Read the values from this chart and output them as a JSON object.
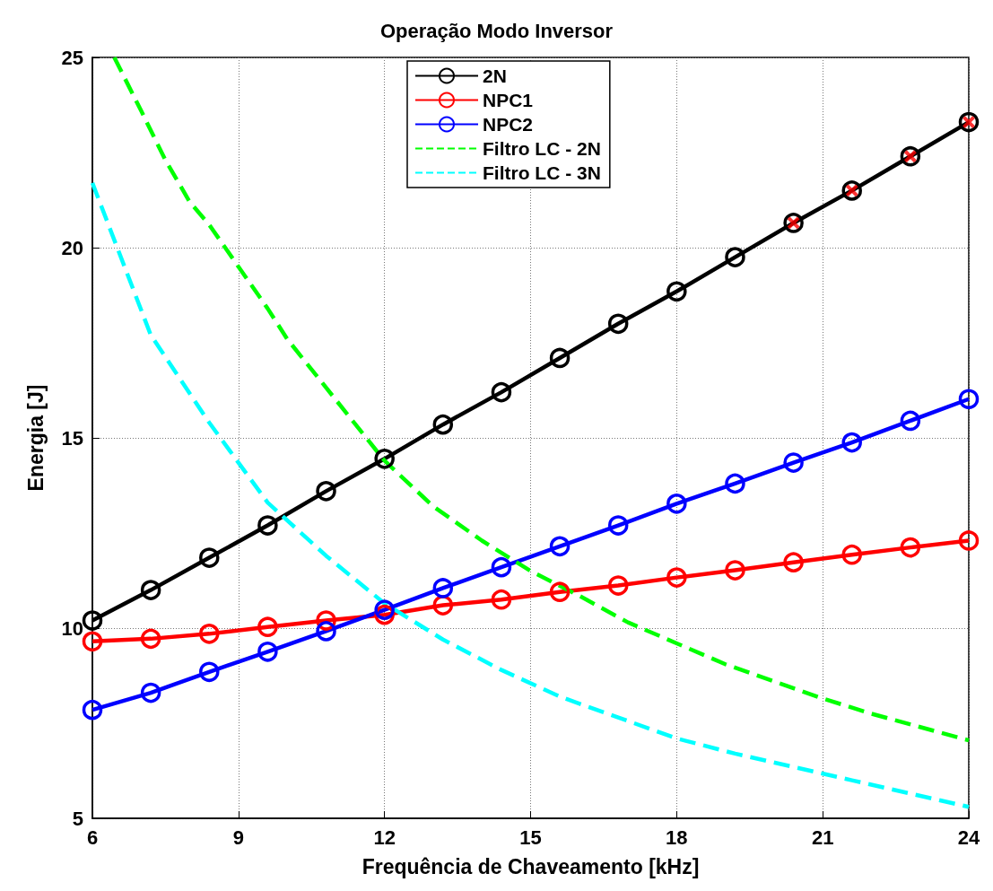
{
  "chart_data": {
    "type": "line",
    "title": "Operação Modo Inversor",
    "xlabel": "Frequência de Chaveamento [kHz]",
    "ylabel": "Energia [J]",
    "xlim": [
      6,
      24
    ],
    "xticks": [
      6,
      9,
      12,
      15,
      18,
      21,
      24
    ],
    "ylim": [
      5,
      25
    ],
    "yticks": [
      5,
      10,
      15,
      20,
      25
    ],
    "grid": true,
    "legend": "top",
    "series": [
      {
        "name": "2N",
        "color": "#000000",
        "marker": "circle",
        "line_style": "solid",
        "x": [
          6,
          7.2,
          8.4,
          9.6,
          10.8,
          12,
          13.2,
          14.4,
          15.6,
          16.8,
          18,
          19.2,
          20.4,
          21.6,
          22.8,
          24
        ],
        "values": [
          10.2,
          11.0,
          11.85,
          12.7,
          13.6,
          14.45,
          15.35,
          16.2,
          17.1,
          18.0,
          18.85,
          19.75,
          20.65,
          21.5,
          22.4,
          23.3
        ]
      },
      {
        "name": "NPC1",
        "color": "#ff0000",
        "marker": "circle",
        "line_style": "solid",
        "x": [
          6,
          7.2,
          8.4,
          9.6,
          10.8,
          12,
          13.2,
          14.4,
          15.6,
          16.8,
          18,
          19.2,
          20.4,
          21.6,
          22.8,
          24
        ],
        "values": [
          9.65,
          9.72,
          9.85,
          10.03,
          10.2,
          10.35,
          10.6,
          10.75,
          10.95,
          11.12,
          11.33,
          11.52,
          11.73,
          11.93,
          12.12,
          12.3
        ]
      },
      {
        "name": "NPC2",
        "color": "#0000ff",
        "marker": "circle",
        "line_style": "solid",
        "x": [
          6,
          7.2,
          8.4,
          9.6,
          10.8,
          12,
          13.2,
          14.4,
          15.6,
          16.8,
          18,
          19.2,
          20.4,
          21.6,
          22.8,
          24
        ],
        "values": [
          7.85,
          8.3,
          8.85,
          9.38,
          9.92,
          10.48,
          11.05,
          11.6,
          12.15,
          12.7,
          13.27,
          13.8,
          14.35,
          14.88,
          15.45,
          16.02
        ]
      },
      {
        "name": "Filtro LC - 2N",
        "color": "#00ff00",
        "marker": "none",
        "line_style": "dashed",
        "x": [
          6.45,
          7,
          7.5,
          8,
          8.4,
          9,
          9.6,
          10,
          11,
          12,
          13,
          14,
          15,
          16,
          17,
          18,
          19,
          20,
          21,
          22,
          23,
          24
        ],
        "values": [
          25,
          23.6,
          22.3,
          21.2,
          20.6,
          19.5,
          18.4,
          17.6,
          16.0,
          14.4,
          13.2,
          12.3,
          11.5,
          10.85,
          10.15,
          9.6,
          9.05,
          8.6,
          8.15,
          7.75,
          7.4,
          7.05
        ]
      },
      {
        "name": "Filtro LC - 3N",
        "color": "#00ffff",
        "marker": "none",
        "line_style": "dashed",
        "x": [
          6,
          7.2,
          8.4,
          9.6,
          10.8,
          12,
          13.2,
          14.4,
          15.6,
          16.8,
          18,
          19.2,
          20.4,
          21.6,
          22.8,
          24
        ],
        "values": [
          21.7,
          17.7,
          15.4,
          13.3,
          11.9,
          10.65,
          9.7,
          8.9,
          8.2,
          7.65,
          7.1,
          6.7,
          6.35,
          6.0,
          5.65,
          5.3
        ]
      },
      {
        "type": "scatter",
        "color": "#ff0000",
        "marker": "cross",
        "x": [
          20.4,
          21.6,
          22.8,
          24
        ],
        "values": [
          20.65,
          21.5,
          22.4,
          23.3
        ]
      }
    ]
  }
}
